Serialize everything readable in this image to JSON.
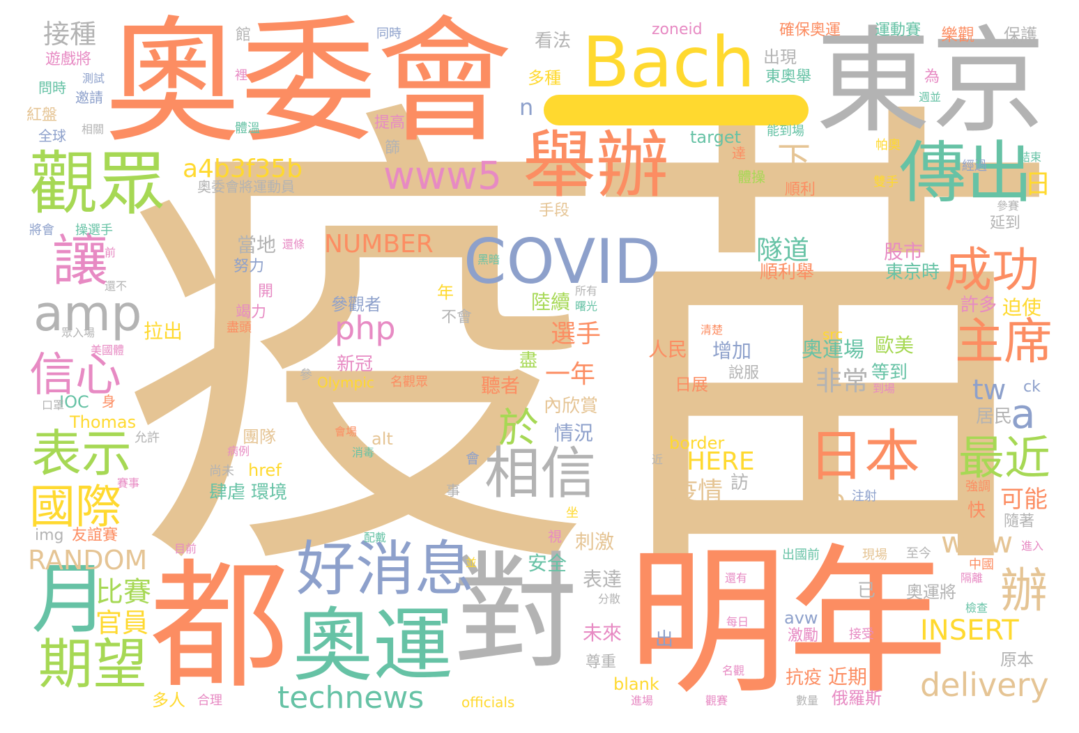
{
  "cloud": {
    "palette": {
      "tan": "#e2c18f",
      "salmon": "#fc8d62",
      "gray": "#b3b3b3",
      "yellow": "#ffd92f",
      "green": "#a6d854",
      "teal": "#66c2a5",
      "blue": "#8da0cb",
      "pink": "#e78ac3",
      "beige": "#e5c494"
    },
    "words": [
      {
        "text": "疫苗",
        "color": "#e5c494"
      },
      {
        "text": "奧委會",
        "color": "#fc8d62"
      },
      {
        "text": "東京",
        "color": "#b3b3b3"
      },
      {
        "text": "Bach",
        "color": "#ffd92f"
      },
      {
        "text": "—",
        "color": "#ffd92f"
      },
      {
        "text": "明年",
        "color": "#fc8d62"
      },
      {
        "text": "都",
        "color": "#fc8d62"
      },
      {
        "text": "對",
        "color": "#b3b3b3"
      },
      {
        "text": "奧運",
        "color": "#66c2a5"
      },
      {
        "text": "舉辦",
        "color": "#fc8d62"
      },
      {
        "text": "觀眾",
        "color": "#a6d854"
      },
      {
        "text": "傳出",
        "color": "#66c2a5"
      },
      {
        "text": "COVID",
        "color": "#8da0cb"
      },
      {
        "text": "www5",
        "color": "#e78ac3"
      },
      {
        "text": "好消息",
        "color": "#8da0cb"
      },
      {
        "text": "日本",
        "color": "#fc8d62"
      },
      {
        "text": "相信",
        "color": "#b3b3b3"
      },
      {
        "text": "月",
        "color": "#66c2a5"
      },
      {
        "text": "期望",
        "color": "#a6d854"
      },
      {
        "text": "表示",
        "color": "#a6d854"
      },
      {
        "text": "國際",
        "color": "#ffd92f"
      },
      {
        "text": "信心",
        "color": "#e78ac3"
      },
      {
        "text": "amp",
        "color": "#b3b3b3"
      },
      {
        "text": "讓",
        "color": "#e78ac3"
      },
      {
        "text": "成功",
        "color": "#fc8d62"
      },
      {
        "text": "主席",
        "color": "#fc8d62"
      },
      {
        "text": "最近",
        "color": "#a6d854"
      },
      {
        "text": "辦",
        "color": "#e5c494"
      },
      {
        "text": "technews",
        "color": "#66c2a5"
      },
      {
        "text": "delivery",
        "color": "#e5c494"
      },
      {
        "text": "a4b3f35b",
        "color": "#ffd92f"
      },
      {
        "text": "php",
        "color": "#e78ac3"
      },
      {
        "text": "於",
        "color": "#a6d854"
      },
      {
        "text": "RANDOM",
        "color": "#e5c494"
      },
      {
        "text": "INSERT",
        "color": "#ffd92f"
      },
      {
        "text": "NUMBER",
        "color": "#fc8d62"
      },
      {
        "text": "HERE",
        "color": "#ffd92f"
      },
      {
        "text": "www",
        "color": "#e5c494"
      },
      {
        "text": "a",
        "color": "#8da0cb"
      },
      {
        "text": "tw",
        "color": "#8da0cb"
      },
      {
        "text": "比賽",
        "color": "#a6d854"
      },
      {
        "text": "官員",
        "color": "#ffd92f"
      },
      {
        "text": "接種",
        "color": "#b3b3b3"
      },
      {
        "text": "下",
        "color": "#e5c494"
      },
      {
        "text": "日",
        "color": "#ffd92f"
      },
      {
        "text": "選手",
        "color": "#fc8d62"
      },
      {
        "text": "一年",
        "color": "#fc8d62"
      },
      {
        "text": "非常",
        "color": "#b3b3b3"
      },
      {
        "text": "隧道",
        "color": "#66c2a5"
      },
      {
        "text": "可能",
        "color": "#fc8d62"
      },
      {
        "text": "疫情",
        "color": "#e5c494"
      },
      {
        "text": "cb",
        "color": "#e5c494"
      },
      {
        "text": "奧運場",
        "color": "#66c2a5"
      },
      {
        "text": "歐美",
        "color": "#a6d854"
      },
      {
        "text": "股市",
        "color": "#e78ac3"
      },
      {
        "text": "東京時",
        "color": "#66c2a5"
      },
      {
        "text": "許多",
        "color": "#e78ac3"
      },
      {
        "text": "迫使",
        "color": "#ffd92f"
      },
      {
        "text": "順利舉",
        "color": "#fc8d62"
      },
      {
        "text": "當地",
        "color": "#b3b3b3"
      },
      {
        "text": "努力",
        "color": "#8da0cb"
      },
      {
        "text": "竭力",
        "color": "#e78ac3"
      },
      {
        "text": "拉出",
        "color": "#ffd92f"
      },
      {
        "text": "參觀者",
        "color": "#8da0cb"
      },
      {
        "text": "不會",
        "color": "#b3b3b3"
      },
      {
        "text": "新冠",
        "color": "#e78ac3"
      },
      {
        "text": "陸續",
        "color": "#a6d854"
      },
      {
        "text": "刺激",
        "color": "#e5c494"
      },
      {
        "text": "情況",
        "color": "#8da0cb"
      },
      {
        "text": "內欣賞",
        "color": "#e5c494"
      },
      {
        "text": "聽者",
        "color": "#fc8d62"
      },
      {
        "text": "團隊",
        "color": "#e5c494"
      },
      {
        "text": "肆虐",
        "color": "#66c2a5"
      },
      {
        "text": "環境",
        "color": "#66c2a5"
      },
      {
        "text": "href",
        "color": "#ffd92f"
      },
      {
        "text": "alt",
        "color": "#e5c494"
      },
      {
        "text": "border",
        "color": "#ffd92f"
      },
      {
        "text": "人民",
        "color": "#fc8d62"
      },
      {
        "text": "增加",
        "color": "#8da0cb"
      },
      {
        "text": "日展",
        "color": "#fc8d62"
      },
      {
        "text": "等到",
        "color": "#66c2a5"
      },
      {
        "text": "說服",
        "color": "#b3b3b3"
      },
      {
        "text": "居民",
        "color": "#b3b3b3"
      },
      {
        "text": "Olympic",
        "color": "#ffd92f"
      },
      {
        "text": "IOC",
        "color": "#66c2a5"
      },
      {
        "text": "Thomas",
        "color": "#ffd92f"
      },
      {
        "text": "img",
        "color": "#b3b3b3"
      },
      {
        "text": "友誼賽",
        "color": "#fc8d62"
      },
      {
        "text": "安全",
        "color": "#66c2a5"
      },
      {
        "text": "表達",
        "color": "#b3b3b3"
      },
      {
        "text": "未來",
        "color": "#e78ac3"
      },
      {
        "text": "尊重",
        "color": "#b3b3b3"
      },
      {
        "text": "blank",
        "color": "#ffd92f"
      },
      {
        "text": "avw",
        "color": "#8da0cb"
      },
      {
        "text": "激勵",
        "color": "#e78ac3"
      },
      {
        "text": "抗疫",
        "color": "#fc8d62"
      },
      {
        "text": "近期",
        "color": "#fc8d62"
      },
      {
        "text": "俄羅斯",
        "color": "#e78ac3"
      },
      {
        "text": "奧運將",
        "color": "#b3b3b3"
      },
      {
        "text": "原本",
        "color": "#b3b3b3"
      },
      {
        "text": "多人",
        "color": "#ffd92f"
      },
      {
        "text": "officials",
        "color": "#ffd92f"
      },
      {
        "text": "target",
        "color": "#66c2a5"
      },
      {
        "text": "zoneid",
        "color": "#e78ac3"
      },
      {
        "text": "看法",
        "color": "#b3b3b3"
      },
      {
        "text": "多種",
        "color": "#ffd92f"
      },
      {
        "text": "出現",
        "color": "#b3b3b3"
      },
      {
        "text": "東奧舉",
        "color": "#66c2a5"
      },
      {
        "text": "確保奧運",
        "color": "#fc8d62"
      },
      {
        "text": "運動賽",
        "color": "#66c2a5"
      },
      {
        "text": "樂觀",
        "color": "#fc8d62"
      },
      {
        "text": "保護",
        "color": "#b3b3b3"
      },
      {
        "text": "遊戲將",
        "color": "#e78ac3"
      },
      {
        "text": "問時",
        "color": "#66c2a5"
      },
      {
        "text": "邀請",
        "color": "#8da0cb"
      },
      {
        "text": "紅盤",
        "color": "#e5c494"
      },
      {
        "text": "全球",
        "color": "#8da0cb"
      },
      {
        "text": "奧委會將運動員",
        "color": "#b3b3b3"
      },
      {
        "text": "順利",
        "color": "#fc8d62"
      },
      {
        "text": "體操",
        "color": "#a6d854"
      },
      {
        "text": "手段",
        "color": "#e5c494"
      },
      {
        "text": "延到",
        "color": "#b3b3b3"
      },
      {
        "text": "提高",
        "color": "#e78ac3"
      },
      {
        "text": "n",
        "color": "#8da0cb"
      },
      {
        "text": "年",
        "color": "#ffd92f"
      },
      {
        "text": "開",
        "color": "#e78ac3"
      },
      {
        "text": "快",
        "color": "#fc8d62"
      },
      {
        "text": "隨著",
        "color": "#b3b3b3"
      },
      {
        "text": "強調",
        "color": "#fc8d62"
      },
      {
        "text": "注射",
        "color": "#8da0cb"
      },
      {
        "text": "訪",
        "color": "#b3b3b3"
      },
      {
        "text": "已",
        "color": "#b3b3b3"
      },
      {
        "text": "出",
        "color": "#8da0cb"
      },
      {
        "text": "盡",
        "color": "#a6d854"
      },
      {
        "text": "src",
        "color": "#ffd92f"
      },
      {
        "text": "ck",
        "color": "#8da0cb"
      },
      {
        "text": "同時",
        "color": "#8da0cb"
      },
      {
        "text": "館",
        "color": "#b3b3b3"
      },
      {
        "text": "測試",
        "color": "#8da0cb"
      },
      {
        "text": "裡",
        "color": "#e78ac3"
      },
      {
        "text": "相關",
        "color": "#b3b3b3"
      },
      {
        "text": "體溫",
        "color": "#66c2a5"
      },
      {
        "text": "篩",
        "color": "#b3b3b3"
      },
      {
        "text": "能到場",
        "color": "#66c2a5"
      },
      {
        "text": "達",
        "color": "#fc8d62"
      },
      {
        "text": "帕奧",
        "color": "#ffd92f"
      },
      {
        "text": "經過",
        "color": "#8da0cb"
      },
      {
        "text": "雙手",
        "color": "#ffd92f"
      },
      {
        "text": "結束",
        "color": "#66c2a5"
      },
      {
        "text": "週並",
        "color": "#66c2a5"
      },
      {
        "text": "為",
        "color": "#e78ac3"
      },
      {
        "text": "參賽",
        "color": "#b3b3b3"
      },
      {
        "text": "將會",
        "color": "#8da0cb"
      },
      {
        "text": "操選手",
        "color": "#66c2a5"
      },
      {
        "text": "前",
        "color": "#e78ac3"
      },
      {
        "text": "還不",
        "color": "#b3b3b3"
      },
      {
        "text": "還條",
        "color": "#e78ac3"
      },
      {
        "text": "黑暗",
        "color": "#66c2a5"
      },
      {
        "text": "所有",
        "color": "#b3b3b3"
      },
      {
        "text": "曙光",
        "color": "#66c2a5"
      },
      {
        "text": "盡頭",
        "color": "#fc8d62"
      },
      {
        "text": "眾入場",
        "color": "#b3b3b3"
      },
      {
        "text": "美國體",
        "color": "#e78ac3"
      },
      {
        "text": "清楚",
        "color": "#fc8d62"
      },
      {
        "text": "參",
        "color": "#b3b3b3"
      },
      {
        "text": "名觀眾",
        "color": "#fc8d62"
      },
      {
        "text": "身",
        "color": "#fc8d62"
      },
      {
        "text": "口罩",
        "color": "#b3b3b3"
      },
      {
        "text": "允許",
        "color": "#b3b3b3"
      },
      {
        "text": "病例",
        "color": "#e78ac3"
      },
      {
        "text": "尚未",
        "color": "#b3b3b3"
      },
      {
        "text": "會場",
        "color": "#fc8d62"
      },
      {
        "text": "消毒",
        "color": "#66c2a5"
      },
      {
        "text": "會",
        "color": "#8da0cb"
      },
      {
        "text": "近",
        "color": "#b3b3b3"
      },
      {
        "text": "事",
        "color": "#b3b3b3"
      },
      {
        "text": "賽事",
        "color": "#e78ac3"
      },
      {
        "text": "坐",
        "color": "#ffd92f"
      },
      {
        "text": "視",
        "color": "#e78ac3"
      },
      {
        "text": "目前",
        "color": "#e78ac3"
      },
      {
        "text": "配戴",
        "color": "#66c2a5"
      },
      {
        "text": "並",
        "color": "#ffd92f"
      },
      {
        "text": "分散",
        "color": "#b3b3b3"
      },
      {
        "text": "出國前",
        "color": "#66c2a5"
      },
      {
        "text": "現場",
        "color": "#e5c494"
      },
      {
        "text": "至今",
        "color": "#b3b3b3"
      },
      {
        "text": "中國",
        "color": "#fc8d62"
      },
      {
        "text": "進入",
        "color": "#e78ac3"
      },
      {
        "text": "隔離",
        "color": "#e78ac3"
      },
      {
        "text": "還有",
        "color": "#e78ac3"
      },
      {
        "text": "每日",
        "color": "#e78ac3"
      },
      {
        "text": "檢查",
        "color": "#66c2a5"
      },
      {
        "text": "接受",
        "color": "#e78ac3"
      },
      {
        "text": "名觀",
        "color": "#e78ac3"
      },
      {
        "text": "進場",
        "color": "#e78ac3"
      },
      {
        "text": "觀賽",
        "color": "#e78ac3"
      },
      {
        "text": "數量",
        "color": "#b3b3b3"
      },
      {
        "text": "合理",
        "color": "#e78ac3"
      },
      {
        "text": "到場",
        "color": "#e78ac3"
      }
    ]
  }
}
